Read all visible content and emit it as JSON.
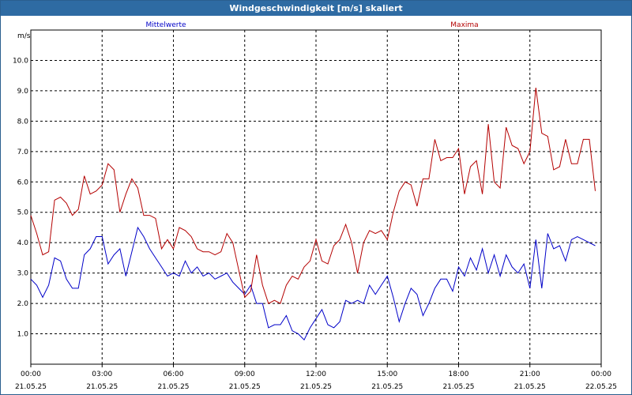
{
  "window": {
    "title": "Windgeschwindigkeit [m/s] skaliert"
  },
  "chart_data": {
    "type": "line",
    "title": "Windgeschwindigkeit [m/s] skaliert",
    "ylabel": "m/s",
    "xlabel": "",
    "ylim": [
      0,
      11
    ],
    "xlim": [
      0,
      24
    ],
    "grid": true,
    "yticks": [
      1.0,
      2.0,
      3.0,
      4.0,
      5.0,
      6.0,
      7.0,
      8.0,
      9.0,
      10.0
    ],
    "ytick_labels": [
      "1.0",
      "2.0",
      "3.0",
      "4.0",
      "5.0",
      "6.0",
      "7.0",
      "8.0",
      "9.0",
      "10.0"
    ],
    "xticks": [
      {
        "time": "00:00",
        "date": "21.05.25"
      },
      {
        "time": "03:00",
        "date": "21.05.25"
      },
      {
        "time": "06:00",
        "date": "21.05.25"
      },
      {
        "time": "09:00",
        "date": "21.05.25"
      },
      {
        "time": "12:00",
        "date": "21.05.25"
      },
      {
        "time": "15:00",
        "date": "21.05.25"
      },
      {
        "time": "18:00",
        "date": "21.05.25"
      },
      {
        "time": "21:00",
        "date": "21.05.25"
      },
      {
        "time": "00:00",
        "date": "22.05.25"
      }
    ],
    "series": [
      {
        "name": "Mittelwerte",
        "color": "#0000c8",
        "values": [
          [
            0.0,
            2.8
          ],
          [
            0.25,
            2.6
          ],
          [
            0.5,
            2.2
          ],
          [
            0.75,
            2.6
          ],
          [
            1.0,
            3.5
          ],
          [
            1.25,
            3.4
          ],
          [
            1.5,
            2.8
          ],
          [
            1.75,
            2.5
          ],
          [
            2.0,
            2.5
          ],
          [
            2.25,
            3.6
          ],
          [
            2.5,
            3.8
          ],
          [
            2.75,
            4.2
          ],
          [
            3.0,
            4.2
          ],
          [
            3.25,
            3.3
          ],
          [
            3.5,
            3.6
          ],
          [
            3.75,
            3.8
          ],
          [
            4.0,
            2.9
          ],
          [
            4.25,
            3.7
          ],
          [
            4.5,
            4.5
          ],
          [
            4.75,
            4.2
          ],
          [
            5.0,
            3.8
          ],
          [
            5.25,
            3.5
          ],
          [
            5.5,
            3.2
          ],
          [
            5.75,
            2.9
          ],
          [
            6.0,
            3.0
          ],
          [
            6.25,
            2.9
          ],
          [
            6.5,
            3.4
          ],
          [
            6.75,
            3.0
          ],
          [
            7.0,
            3.2
          ],
          [
            7.25,
            2.9
          ],
          [
            7.5,
            3.0
          ],
          [
            7.75,
            2.8
          ],
          [
            8.0,
            2.9
          ],
          [
            8.25,
            3.0
          ],
          [
            8.5,
            2.7
          ],
          [
            8.75,
            2.5
          ],
          [
            9.0,
            2.3
          ],
          [
            9.25,
            2.6
          ],
          [
            9.5,
            2.0
          ],
          [
            9.75,
            2.0
          ],
          [
            10.0,
            1.2
          ],
          [
            10.25,
            1.3
          ],
          [
            10.5,
            1.3
          ],
          [
            10.75,
            1.6
          ],
          [
            11.0,
            1.1
          ],
          [
            11.25,
            1.0
          ],
          [
            11.5,
            0.8
          ],
          [
            11.75,
            1.2
          ],
          [
            12.0,
            1.5
          ],
          [
            12.25,
            1.8
          ],
          [
            12.5,
            1.3
          ],
          [
            12.75,
            1.2
          ],
          [
            13.0,
            1.4
          ],
          [
            13.25,
            2.1
          ],
          [
            13.5,
            2.0
          ],
          [
            13.75,
            2.1
          ],
          [
            14.0,
            2.0
          ],
          [
            14.25,
            2.6
          ],
          [
            14.5,
            2.3
          ],
          [
            14.75,
            2.6
          ],
          [
            15.0,
            2.9
          ],
          [
            15.25,
            2.2
          ],
          [
            15.5,
            1.4
          ],
          [
            15.75,
            2.0
          ],
          [
            16.0,
            2.5
          ],
          [
            16.25,
            2.3
          ],
          [
            16.5,
            1.6
          ],
          [
            16.75,
            2.0
          ],
          [
            17.0,
            2.5
          ],
          [
            17.25,
            2.8
          ],
          [
            17.5,
            2.8
          ],
          [
            17.75,
            2.4
          ],
          [
            18.0,
            3.2
          ],
          [
            18.25,
            2.9
          ],
          [
            18.5,
            3.5
          ],
          [
            18.75,
            3.1
          ],
          [
            19.0,
            3.8
          ],
          [
            19.25,
            3.0
          ],
          [
            19.5,
            3.6
          ],
          [
            19.75,
            2.9
          ],
          [
            20.0,
            3.6
          ],
          [
            20.25,
            3.2
          ],
          [
            20.5,
            3.0
          ],
          [
            20.75,
            3.3
          ],
          [
            21.0,
            2.5
          ],
          [
            21.25,
            4.1
          ],
          [
            21.5,
            2.5
          ],
          [
            21.75,
            4.3
          ],
          [
            22.0,
            3.8
          ],
          [
            22.25,
            3.9
          ],
          [
            22.5,
            3.4
          ],
          [
            22.75,
            4.1
          ],
          [
            23.0,
            4.2
          ],
          [
            23.25,
            4.1
          ],
          [
            23.5,
            4.0
          ],
          [
            23.75,
            3.9
          ]
        ]
      },
      {
        "name": "Maxima",
        "color": "#b40000",
        "values": [
          [
            0.0,
            4.9
          ],
          [
            0.25,
            4.3
          ],
          [
            0.5,
            3.6
          ],
          [
            0.75,
            3.7
          ],
          [
            1.0,
            5.4
          ],
          [
            1.25,
            5.5
          ],
          [
            1.5,
            5.3
          ],
          [
            1.75,
            4.9
          ],
          [
            2.0,
            5.1
          ],
          [
            2.25,
            6.2
          ],
          [
            2.5,
            5.6
          ],
          [
            2.75,
            5.7
          ],
          [
            3.0,
            5.9
          ],
          [
            3.25,
            6.6
          ],
          [
            3.5,
            6.4
          ],
          [
            3.75,
            5.0
          ],
          [
            4.0,
            5.6
          ],
          [
            4.25,
            6.1
          ],
          [
            4.5,
            5.8
          ],
          [
            4.75,
            4.9
          ],
          [
            5.0,
            4.9
          ],
          [
            5.25,
            4.8
          ],
          [
            5.5,
            3.8
          ],
          [
            5.75,
            4.1
          ],
          [
            6.0,
            3.8
          ],
          [
            6.25,
            4.5
          ],
          [
            6.5,
            4.4
          ],
          [
            6.75,
            4.2
          ],
          [
            7.0,
            3.8
          ],
          [
            7.25,
            3.7
          ],
          [
            7.5,
            3.7
          ],
          [
            7.75,
            3.6
          ],
          [
            8.0,
            3.7
          ],
          [
            8.25,
            4.3
          ],
          [
            8.5,
            4.0
          ],
          [
            8.75,
            3.1
          ],
          [
            9.0,
            2.2
          ],
          [
            9.25,
            2.4
          ],
          [
            9.5,
            3.6
          ],
          [
            9.75,
            2.6
          ],
          [
            10.0,
            2.0
          ],
          [
            10.25,
            2.1
          ],
          [
            10.5,
            2.0
          ],
          [
            10.75,
            2.6
          ],
          [
            11.0,
            2.9
          ],
          [
            11.25,
            2.8
          ],
          [
            11.5,
            3.2
          ],
          [
            11.75,
            3.4
          ],
          [
            12.0,
            4.1
          ],
          [
            12.25,
            3.4
          ],
          [
            12.5,
            3.3
          ],
          [
            12.75,
            3.9
          ],
          [
            13.0,
            4.1
          ],
          [
            13.25,
            4.6
          ],
          [
            13.5,
            4.0
          ],
          [
            13.75,
            3.0
          ],
          [
            14.0,
            4.0
          ],
          [
            14.25,
            4.4
          ],
          [
            14.5,
            4.3
          ],
          [
            14.75,
            4.4
          ],
          [
            15.0,
            4.1
          ],
          [
            15.25,
            5.0
          ],
          [
            15.5,
            5.7
          ],
          [
            15.75,
            6.0
          ],
          [
            16.0,
            5.9
          ],
          [
            16.25,
            5.2
          ],
          [
            16.5,
            6.1
          ],
          [
            16.75,
            6.1
          ],
          [
            17.0,
            7.4
          ],
          [
            17.25,
            6.7
          ],
          [
            17.5,
            6.8
          ],
          [
            17.75,
            6.8
          ],
          [
            18.0,
            7.1
          ],
          [
            18.25,
            5.6
          ],
          [
            18.5,
            6.5
          ],
          [
            18.75,
            6.7
          ],
          [
            19.0,
            5.6
          ],
          [
            19.25,
            7.9
          ],
          [
            19.5,
            6.0
          ],
          [
            19.75,
            5.8
          ],
          [
            20.0,
            7.8
          ],
          [
            20.25,
            7.2
          ],
          [
            20.5,
            7.1
          ],
          [
            20.75,
            6.6
          ],
          [
            21.0,
            7.0
          ],
          [
            21.25,
            9.1
          ],
          [
            21.5,
            7.6
          ],
          [
            21.75,
            7.5
          ],
          [
            22.0,
            6.4
          ],
          [
            22.25,
            6.5
          ],
          [
            22.5,
            7.4
          ],
          [
            22.75,
            6.6
          ],
          [
            23.0,
            6.6
          ],
          [
            23.25,
            7.4
          ],
          [
            23.5,
            7.4
          ],
          [
            23.75,
            5.7
          ]
        ]
      }
    ],
    "legend": [
      {
        "label": "Mittelwerte",
        "color": "#0000c8",
        "placement": "top-center-left"
      },
      {
        "label": "Maxima",
        "color": "#b40000",
        "placement": "top-center-right"
      }
    ]
  }
}
